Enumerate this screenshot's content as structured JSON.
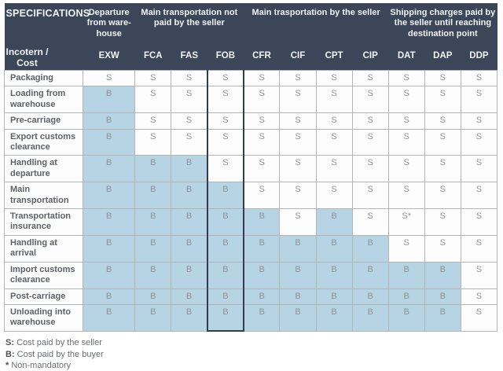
{
  "table": {
    "title": "SPECIFICATIONS",
    "row_axis_label": "Incotern /\nCost",
    "groups": [
      {
        "label": "Departure from ware-house",
        "span": 1
      },
      {
        "label": "Main transportation not paid by the seller",
        "span": 3
      },
      {
        "label": "Main trasportation by the seller",
        "span": 4
      },
      {
        "label": "Shipping charges paid by the seller until reaching destination point",
        "span": 3
      }
    ],
    "columns": [
      "EXW",
      "FCA",
      "FAS",
      "FOB",
      "CFR",
      "CIF",
      "CPT",
      "CIP",
      "DAT",
      "DAP",
      "DDP"
    ],
    "highlighted_column": "FOB",
    "rows": [
      {
        "label": "Packaging",
        "values": [
          "S",
          "S",
          "S",
          "S",
          "S",
          "S",
          "S",
          "S",
          "S",
          "S",
          "S"
        ]
      },
      {
        "label": "Loading from warehouse",
        "values": [
          "B",
          "S",
          "S",
          "S",
          "S",
          "S",
          "S",
          "S",
          "S",
          "S",
          "S"
        ]
      },
      {
        "label": "Pre-carriage",
        "values": [
          "B",
          "S",
          "S",
          "S",
          "S",
          "S",
          "S",
          "S",
          "S",
          "S",
          "S"
        ]
      },
      {
        "label": "Export customs clearance",
        "values": [
          "B",
          "S",
          "S",
          "S",
          "S",
          "S",
          "S",
          "S",
          "S",
          "S",
          "S"
        ]
      },
      {
        "label": "Handling at departure",
        "values": [
          "B",
          "B",
          "B",
          "S",
          "S",
          "S",
          "S",
          "S",
          "S",
          "S",
          "S"
        ]
      },
      {
        "label": "Main transportation",
        "values": [
          "B",
          "B",
          "B",
          "B",
          "S",
          "S",
          "S",
          "S",
          "S",
          "S",
          "S"
        ]
      },
      {
        "label": "Transportation insurance",
        "values": [
          "B",
          "B",
          "B",
          "B",
          "B",
          "S",
          "B",
          "S",
          "S*",
          "S",
          "S"
        ]
      },
      {
        "label": "Handling at arrival",
        "values": [
          "B",
          "B",
          "B",
          "B",
          "B",
          "B",
          "B",
          "B",
          "S",
          "S",
          "S"
        ]
      },
      {
        "label": "Import customs clearance",
        "values": [
          "B",
          "B",
          "B",
          "B",
          "B",
          "B",
          "B",
          "B",
          "B",
          "B",
          "S"
        ]
      },
      {
        "label": "Post-carriage",
        "values": [
          "B",
          "B",
          "B",
          "B",
          "B",
          "B",
          "B",
          "B",
          "B",
          "B",
          "S"
        ]
      },
      {
        "label": "Unloading into warehouse",
        "values": [
          "B",
          "B",
          "B",
          "B",
          "B",
          "B",
          "B",
          "B",
          "B",
          "B",
          "S"
        ]
      }
    ]
  },
  "legend": {
    "items": [
      {
        "key": "S:",
        "text": "Cost paid by the seller"
      },
      {
        "key": "B:",
        "text": "Cost paid by the buyer"
      },
      {
        "key": "*",
        "text": "Non-mandatory"
      }
    ]
  },
  "colors": {
    "header_bg": "#3b4759",
    "buyer_cell_bg": "#b7d4e5",
    "seller_cell_bg": "#fdfdfd",
    "highlight_border": "#2e3d50"
  }
}
